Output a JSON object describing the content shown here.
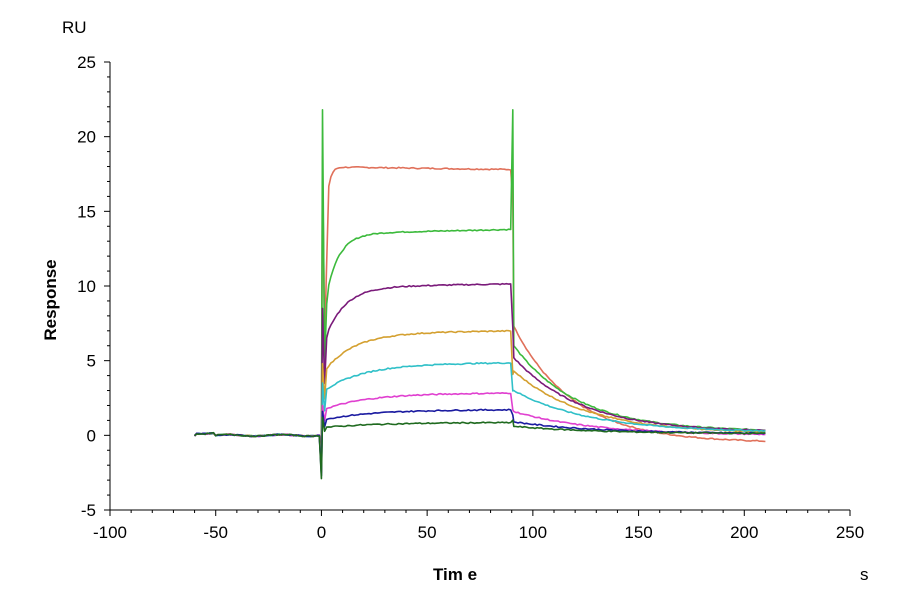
{
  "chart_data": {
    "type": "line",
    "title": "",
    "xlabel": "Tim e",
    "ylabel": "Response",
    "xunit": "s",
    "yunit": "RU",
    "xlim": [
      -100,
      250
    ],
    "ylim": [
      -5,
      25
    ],
    "x_ticks": [
      "-100",
      "-50",
      "0",
      "50",
      "100",
      "150",
      "200",
      "250"
    ],
    "y_ticks": [
      "-5",
      "0",
      "5",
      "10",
      "15",
      "20",
      "25"
    ],
    "grid": false,
    "legend": "none",
    "series": [
      {
        "color": "#e0705a",
        "level": 17.9,
        "kon_tau": 1.5,
        "peak_dissoc": 7.3,
        "end": -0.5,
        "spike": 18.7
      },
      {
        "color": "#3cba3c",
        "level": 13.6,
        "kon_tau": 6.0,
        "peak_dissoc": 6.0,
        "end": 0.25,
        "spike": 21.8
      },
      {
        "color": "#7a1a7a",
        "level": 10.0,
        "kon_tau": 9.0,
        "peak_dissoc": 5.2,
        "end": 0.2,
        "spike": 8.5
      },
      {
        "color": "#d4a030",
        "level": 6.9,
        "kon_tau": 14.0,
        "peak_dissoc": 4.3,
        "end": 0.1,
        "spike": 4.8
      },
      {
        "color": "#30c0c8",
        "level": 4.8,
        "kon_tau": 18.0,
        "peak_dissoc": 3.0,
        "end": 0.2,
        "spike": 3.5
      },
      {
        "color": "#e040d0",
        "level": 2.8,
        "kon_tau": 20.0,
        "peak_dissoc": 1.6,
        "end": 0.0,
        "spike": 2.0
      },
      {
        "color": "#1a1aa0",
        "level": 1.7,
        "kon_tau": 22.0,
        "peak_dissoc": 0.9,
        "end": 0.1,
        "spike": 1.6
      },
      {
        "color": "#1f6a1f",
        "level": 0.85,
        "kon_tau": 25.0,
        "peak_dissoc": 0.6,
        "end": 0.1,
        "spike": 1.2
      }
    ]
  }
}
